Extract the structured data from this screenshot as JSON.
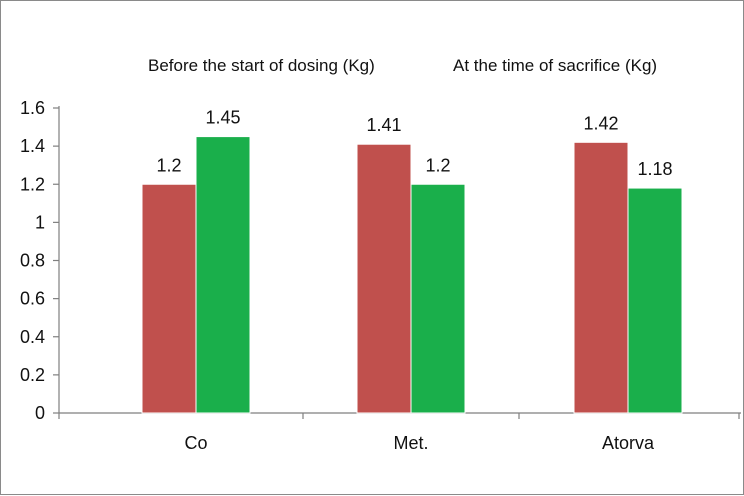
{
  "chart_data": {
    "type": "bar",
    "categories": [
      "Co",
      "Met.",
      "Atorva"
    ],
    "series": [
      {
        "name": "Before the start of dosing (Kg)",
        "values": [
          1.2,
          1.41,
          1.42
        ],
        "color": "#c0504d"
      },
      {
        "name": "At the time of sacrifice (Kg)",
        "values": [
          1.45,
          1.2,
          1.18
        ],
        "color": "#1aaf4b"
      }
    ],
    "data_labels": [
      [
        "1.2",
        "1.41",
        "1.42"
      ],
      [
        "1.45",
        "1.2",
        "1.18"
      ]
    ],
    "y_ticks": [
      "0",
      "0.2",
      "0.4",
      "0.6",
      "0.8",
      "1",
      "1.2",
      "1.4",
      "1.6"
    ],
    "ylim": [
      0,
      1.6
    ],
    "title": "",
    "xlabel": "",
    "ylabel": "",
    "grid": false,
    "legend_position": "top"
  }
}
